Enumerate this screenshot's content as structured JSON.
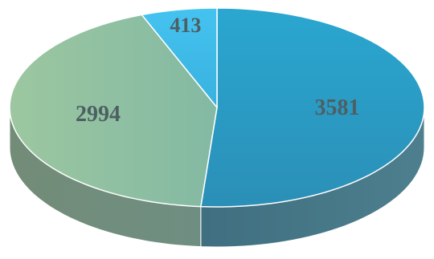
{
  "chart_data": {
    "type": "pie",
    "style": "3d",
    "title": "",
    "slices": [
      {
        "label": "3581",
        "value": 3581,
        "color": "#2a9ec5"
      },
      {
        "label": "2994",
        "value": 2994,
        "color": "#8dbf9c"
      },
      {
        "label": "413",
        "value": 413,
        "color": "#3cb6e6"
      }
    ],
    "legend": "none"
  }
}
